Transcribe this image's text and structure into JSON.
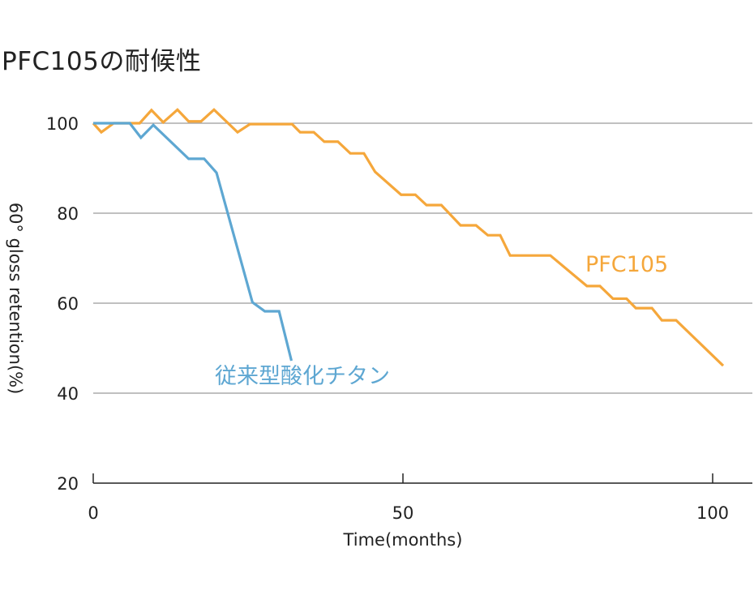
{
  "chart_data": {
    "type": "line",
    "title": "PFC105の耐候性",
    "xlabel": "Time(months)",
    "ylabel": "60° gloss retention(%)",
    "xlim": [
      0,
      106
    ],
    "ylim": [
      20,
      100
    ],
    "xticks": [
      0,
      50,
      100
    ],
    "yticks": [
      20,
      40,
      60,
      80,
      100
    ],
    "grid": "horizontal",
    "legend": "inline labels",
    "series": [
      {
        "name": "PFC105",
        "color": "#F5A73B",
        "x": [
          0,
          1.3,
          3.3,
          7.5,
          9.4,
          11.3,
          13.6,
          15.4,
          17.4,
          19.5,
          23.3,
          25.3,
          32.1,
          33.4,
          35.6,
          37.3,
          39.5,
          41.5,
          43.7,
          45.5,
          49.7,
          52,
          53.8,
          56.2,
          59.3,
          61.8,
          63.7,
          65.7,
          67.3,
          73.8,
          79.7,
          81.8,
          83.9,
          86.1,
          87.6,
          90.2,
          91.8,
          94.1,
          101.7
        ],
        "y": [
          100,
          98,
          100,
          100,
          102.9,
          100.2,
          103,
          100.4,
          100.4,
          103,
          98,
          99.8,
          99.8,
          98,
          98,
          95.9,
          95.9,
          93.3,
          93.3,
          89.2,
          84.1,
          84.1,
          81.8,
          81.8,
          77.3,
          77.3,
          75.1,
          75.1,
          70.6,
          70.6,
          63.8,
          63.8,
          61,
          61,
          58.9,
          58.9,
          56.2,
          56.2,
          46.1
        ]
      },
      {
        "name": "従来型酸化チタン",
        "color": "#5EA7D2",
        "x": [
          0,
          5.9,
          7.7,
          9.7,
          15.4,
          17.9,
          19.9,
          25.7,
          27.7,
          30,
          32
        ],
        "y": [
          100,
          100,
          96.8,
          99.6,
          92.1,
          92.1,
          89,
          60.2,
          58.2,
          58.2,
          47.2
        ]
      }
    ],
    "annotations": [
      {
        "text": "PFC105",
        "series": 0
      },
      {
        "text": "従来型酸化チタン",
        "series": 1
      }
    ]
  }
}
